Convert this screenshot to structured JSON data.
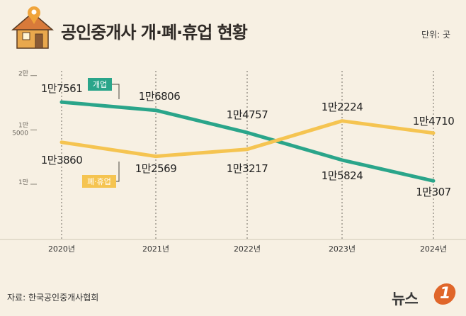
{
  "header": {
    "title": "공인중개사 개·폐·휴업 현황",
    "unit": "단위: 곳"
  },
  "footer": {
    "source": "자료: 한국공인중개사협회",
    "brand_text": "뉴스",
    "brand_badge": "1"
  },
  "chart_data": {
    "type": "line",
    "title": "공인중개사 개·폐·휴업 현황",
    "unit": "단위: 곳",
    "categories": [
      "2020년",
      "2021년",
      "2022년",
      "2023년",
      "2024년"
    ],
    "y_ticks": [
      {
        "value": 20000,
        "label": "2만"
      },
      {
        "value": 15000,
        "label": "1만 5000"
      },
      {
        "value": 10000,
        "label": "1만"
      }
    ],
    "ylim": [
      10000,
      20000
    ],
    "grid": "dashed vertical guides",
    "series": [
      {
        "name": "개업",
        "color": "#2aa58a",
        "values": [
          17561,
          16806,
          14757,
          12224,
          10307
        ],
        "labels": [
          "1만7561",
          "1만6806",
          "1만4757",
          "1만2224",
          "1만307"
        ]
      },
      {
        "name": "폐·휴업",
        "color": "#f5c451",
        "values": [
          13860,
          12569,
          13217,
          15824,
          14710
        ],
        "labels": [
          "1만3860",
          "1만2569",
          "1만3217",
          "1만5824",
          "1만4710"
        ]
      }
    ]
  }
}
